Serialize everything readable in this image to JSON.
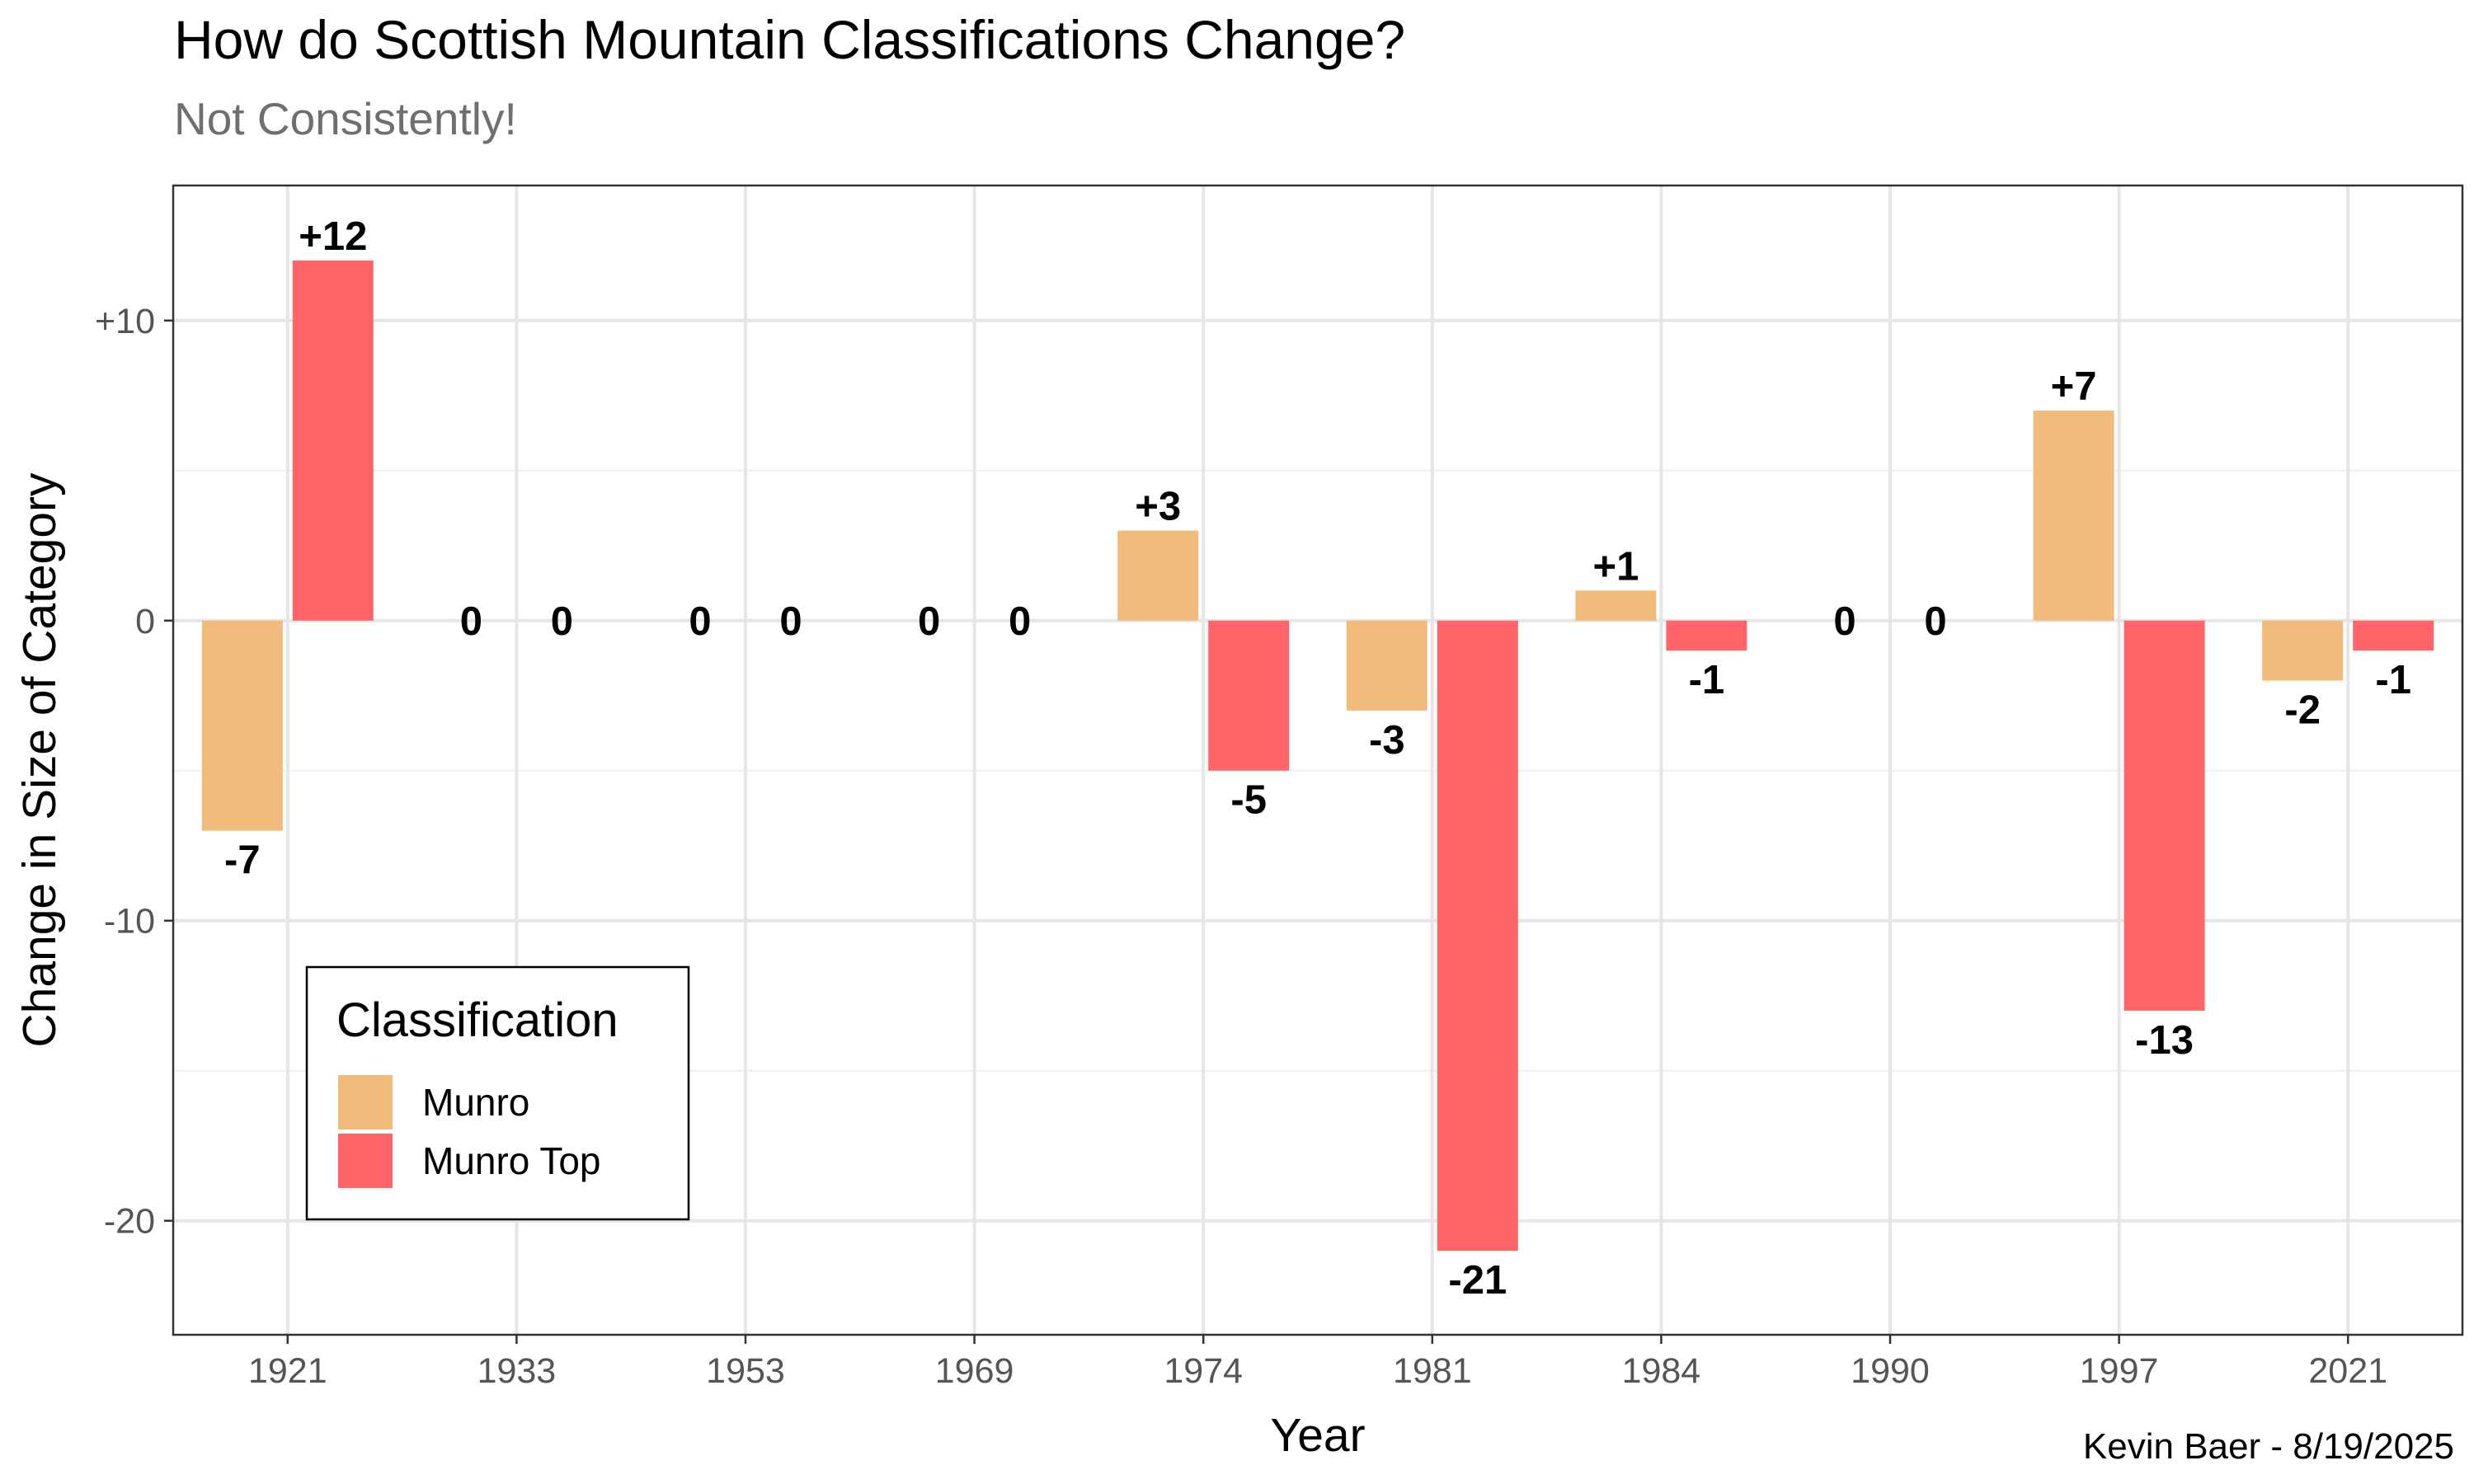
{
  "chart_data": {
    "type": "bar",
    "title": "How do Scottish Mountain Classifications Change?",
    "subtitle": "Not Consistently!",
    "caption": "Kevin Baer - 8/19/2025",
    "xlabel": "Year",
    "ylabel": "Change in Size of Category",
    "categories": [
      "1921",
      "1933",
      "1953",
      "1969",
      "1974",
      "1981",
      "1984",
      "1990",
      "1997",
      "2021"
    ],
    "series": [
      {
        "name": "Munro",
        "color": "#F0BB7B",
        "values": [
          -7,
          0,
          0,
          0,
          3,
          -3,
          1,
          0,
          7,
          -2
        ],
        "labels": [
          "-7",
          "0",
          "0",
          "0",
          "+3",
          "-3",
          "+1",
          "0",
          "+7",
          "-2"
        ]
      },
      {
        "name": "Munro Top",
        "color": "#FF6468",
        "values": [
          12,
          0,
          0,
          0,
          -5,
          -21,
          -1,
          0,
          -13,
          -1
        ],
        "labels": [
          "+12",
          "0",
          "0",
          "0",
          "-5",
          "-21",
          "-1",
          "0",
          "-13",
          "-1"
        ]
      }
    ],
    "ylim": [
      -23.8,
      14.5
    ],
    "yticks": [
      10,
      0,
      -10,
      -20
    ],
    "ytick_labels": [
      "+10",
      "0",
      "-10",
      "-20"
    ],
    "grid": true,
    "legend": {
      "title": "Classification",
      "position": "bottom-left"
    }
  }
}
